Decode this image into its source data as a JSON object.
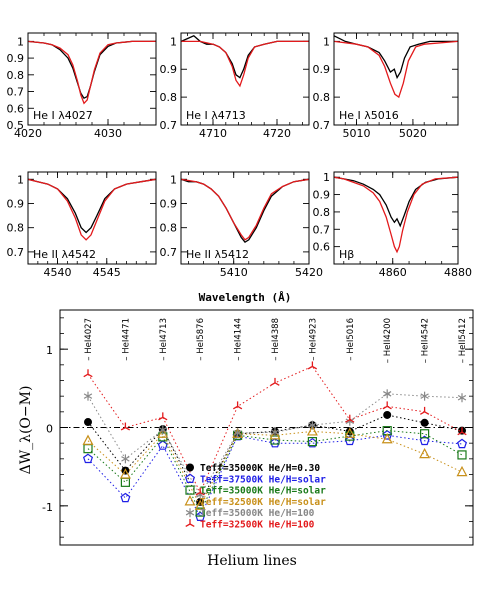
{
  "chart_data": [
    {
      "type": "line",
      "panel": "He I λ4027",
      "label": "He I λ4027",
      "xlim": [
        4020,
        4036
      ],
      "ylim": [
        0.5,
        1.05
      ],
      "xticks": [
        4020,
        4030
      ],
      "yticks": [
        0.5,
        0.6,
        0.7,
        0.8,
        0.9,
        1
      ],
      "series": [
        {
          "color": "#000000",
          "x": [
            4020,
            4022,
            4023,
            4024,
            4025,
            4025.6,
            4026.2,
            4026.6,
            4027,
            4027.4,
            4027.8,
            4028.3,
            4029,
            4030,
            4031,
            4033,
            4036
          ],
          "y": [
            1.0,
            0.99,
            0.98,
            0.95,
            0.9,
            0.84,
            0.75,
            0.69,
            0.66,
            0.67,
            0.73,
            0.82,
            0.92,
            0.97,
            0.99,
            1.0,
            1.0
          ]
        },
        {
          "color": "#e31a1c",
          "x": [
            4020,
            4022,
            4023,
            4024,
            4025,
            4025.6,
            4026.2,
            4026.6,
            4027,
            4027.4,
            4027.8,
            4028.3,
            4029,
            4030,
            4031,
            4033,
            4036
          ],
          "y": [
            1.0,
            0.99,
            0.98,
            0.96,
            0.92,
            0.86,
            0.76,
            0.68,
            0.63,
            0.65,
            0.73,
            0.83,
            0.93,
            0.98,
            0.99,
            1.0,
            1.0
          ]
        }
      ]
    },
    {
      "type": "line",
      "panel": "He I λ4713",
      "label": "He I λ4713",
      "xlim": [
        4705,
        4725
      ],
      "ylim": [
        0.7,
        1.03
      ],
      "xticks": [
        4710,
        4720
      ],
      "yticks": [
        0.7,
        0.8,
        0.9,
        1
      ],
      "series": [
        {
          "color": "#000000",
          "x": [
            4705,
            4706,
            4707,
            4708,
            4709,
            4710,
            4711,
            4712,
            4713,
            4713.6,
            4714.2,
            4714.8,
            4715.5,
            4716.5,
            4718,
            4720,
            4725
          ],
          "y": [
            1.0,
            1.01,
            1.02,
            1.0,
            0.99,
            0.99,
            0.98,
            0.96,
            0.92,
            0.88,
            0.87,
            0.9,
            0.95,
            0.98,
            0.99,
            1.0,
            1.0
          ]
        },
        {
          "color": "#e31a1c",
          "x": [
            4705,
            4708,
            4710,
            4711,
            4712,
            4713,
            4713.6,
            4714.2,
            4714.8,
            4715.5,
            4716.5,
            4718,
            4720,
            4725
          ],
          "y": [
            1.0,
            1.0,
            0.99,
            0.98,
            0.96,
            0.91,
            0.86,
            0.84,
            0.88,
            0.94,
            0.98,
            0.99,
            1.0,
            1.0
          ]
        }
      ]
    },
    {
      "type": "line",
      "panel": "He I λ5016",
      "label": "He I λ5016",
      "xlim": [
        5006,
        5028
      ],
      "ylim": [
        0.7,
        1.03
      ],
      "xticks": [
        5010,
        5020
      ],
      "yticks": [
        0.7,
        0.8,
        0.9,
        1
      ],
      "series": [
        {
          "color": "#000000",
          "x": [
            5006,
            5007,
            5008,
            5010,
            5012,
            5014,
            5015,
            5016,
            5016.7,
            5017.2,
            5017.8,
            5018.5,
            5019.5,
            5021,
            5023,
            5028
          ],
          "y": [
            1.02,
            1.01,
            1.0,
            0.99,
            0.98,
            0.96,
            0.93,
            0.89,
            0.9,
            0.87,
            0.89,
            0.94,
            0.98,
            0.99,
            1.0,
            1.0
          ]
        },
        {
          "color": "#e31a1c",
          "x": [
            5006,
            5010,
            5012,
            5014,
            5015,
            5016,
            5016.8,
            5017.5,
            5018.3,
            5019.2,
            5020.5,
            5022,
            5028
          ],
          "y": [
            1.0,
            0.99,
            0.98,
            0.95,
            0.91,
            0.85,
            0.81,
            0.8,
            0.85,
            0.93,
            0.98,
            0.99,
            1.0
          ]
        }
      ]
    },
    {
      "type": "line",
      "panel": "He II λ4542",
      "label": "He II λ4542",
      "xlim": [
        4537,
        4550
      ],
      "ylim": [
        0.65,
        1.03
      ],
      "xticks": [
        4540,
        4545
      ],
      "yticks": [
        0.7,
        0.8,
        0.9,
        1
      ],
      "series": [
        {
          "color": "#000000",
          "x": [
            4537,
            4538,
            4539,
            4540,
            4541,
            4541.8,
            4542.4,
            4542.9,
            4543.4,
            4544,
            4544.8,
            4545.8,
            4547,
            4548.5,
            4550
          ],
          "y": [
            1.0,
            0.99,
            0.98,
            0.96,
            0.92,
            0.86,
            0.8,
            0.78,
            0.8,
            0.85,
            0.92,
            0.96,
            0.98,
            0.99,
            1.0
          ]
        },
        {
          "color": "#e31a1c",
          "x": [
            4537,
            4538,
            4539,
            4540,
            4541,
            4541.8,
            4542.4,
            4542.9,
            4543.4,
            4544,
            4544.8,
            4545.8,
            4547,
            4548.5,
            4550
          ],
          "y": [
            1.0,
            0.99,
            0.98,
            0.96,
            0.91,
            0.84,
            0.77,
            0.75,
            0.77,
            0.83,
            0.91,
            0.96,
            0.98,
            0.99,
            1.0
          ]
        }
      ]
    },
    {
      "type": "line",
      "panel": "He II λ5412",
      "label": "He II λ5412",
      "xlim": [
        5403,
        5420
      ],
      "ylim": [
        0.65,
        1.03
      ],
      "xticks": [
        5410,
        5420
      ],
      "yticks": [
        0.7,
        0.8,
        0.9,
        1
      ],
      "series": [
        {
          "color": "#000000",
          "x": [
            5403,
            5404,
            5405,
            5406,
            5407,
            5408,
            5409,
            5410,
            5411,
            5411.5,
            5412,
            5413,
            5414,
            5415,
            5416.5,
            5418,
            5420
          ],
          "y": [
            1.0,
            0.99,
            0.99,
            0.98,
            0.96,
            0.93,
            0.88,
            0.82,
            0.76,
            0.74,
            0.75,
            0.8,
            0.87,
            0.93,
            0.97,
            0.99,
            1.0
          ]
        },
        {
          "color": "#e31a1c",
          "x": [
            5403,
            5405,
            5406,
            5407,
            5408,
            5409,
            5410,
            5411,
            5411.5,
            5412,
            5413,
            5414,
            5415,
            5416.5,
            5418,
            5420
          ],
          "y": [
            1.0,
            0.99,
            0.98,
            0.96,
            0.93,
            0.88,
            0.82,
            0.77,
            0.75,
            0.76,
            0.81,
            0.88,
            0.94,
            0.97,
            0.99,
            1.0
          ]
        }
      ]
    },
    {
      "type": "line",
      "panel": "Hβ",
      "label": "Hβ",
      "xlim": [
        4842,
        4880
      ],
      "ylim": [
        0.5,
        1.03
      ],
      "xticks": [
        4860,
        4880
      ],
      "yticks": [
        0.6,
        0.7,
        0.8,
        0.9,
        1
      ],
      "series": [
        {
          "color": "#000000",
          "x": [
            4842,
            4845,
            4848,
            4851,
            4854,
            4856,
            4858,
            4859.5,
            4860.5,
            4861.3,
            4862.3,
            4863.5,
            4865,
            4867,
            4870,
            4874,
            4880
          ],
          "y": [
            1.0,
            0.99,
            0.98,
            0.96,
            0.93,
            0.9,
            0.84,
            0.77,
            0.74,
            0.76,
            0.72,
            0.78,
            0.86,
            0.93,
            0.97,
            0.99,
            1.0
          ]
        },
        {
          "color": "#e31a1c",
          "x": [
            4842,
            4845,
            4848,
            4851,
            4854,
            4856,
            4858,
            4859.5,
            4860.5,
            4861.3,
            4862,
            4863,
            4864.5,
            4866.5,
            4869,
            4873,
            4880
          ],
          "y": [
            1.0,
            0.99,
            0.97,
            0.95,
            0.91,
            0.86,
            0.77,
            0.67,
            0.6,
            0.57,
            0.6,
            0.69,
            0.8,
            0.9,
            0.96,
            0.99,
            1.0
          ]
        }
      ]
    },
    {
      "type": "scatter",
      "panel": "bottom",
      "xlabel": "Helium lines",
      "ylabel": "ΔW_λ(O−M)",
      "ylim": [
        -1.5,
        1.5
      ],
      "yticks": [
        -1,
        0,
        1
      ],
      "categories": [
        "HeI4027",
        "HeI4471",
        "HeI4713",
        "HeI5876",
        "HeI4144",
        "HeI4388",
        "HeI4923",
        "HeI5016",
        "HeII4200",
        "HeII4542",
        "HeII5412"
      ],
      "series": [
        {
          "name": "Teff=35000K He/H=0.30",
          "color": "#000000",
          "marker": "filled-circle",
          "values": [
            0.07,
            -0.55,
            -0.02,
            -0.95,
            -0.08,
            -0.05,
            0.03,
            -0.05,
            0.16,
            0.06,
            -0.04
          ]
        },
        {
          "name": "Teff=37500K He/H=solar",
          "color": "#1f1fe6",
          "marker": "pentagon",
          "values": [
            -0.4,
            -0.9,
            -0.23,
            -1.14,
            -0.11,
            -0.2,
            -0.2,
            -0.17,
            -0.1,
            -0.17,
            -0.21
          ]
        },
        {
          "name": "Teff=35000K He/H=solar",
          "color": "#1a7a1a",
          "marker": "square",
          "values": [
            -0.27,
            -0.7,
            -0.12,
            -1.08,
            -0.1,
            -0.16,
            -0.18,
            -0.11,
            -0.04,
            -0.08,
            -0.35
          ]
        },
        {
          "name": "Teff=32500K He/H=solar",
          "color": "#c8901a",
          "marker": "triangle",
          "values": [
            -0.17,
            -0.6,
            -0.08,
            -1.0,
            -0.08,
            -0.1,
            -0.05,
            -0.08,
            -0.15,
            -0.34,
            -0.57
          ]
        },
        {
          "name": "Teff=35000K He/H=100",
          "color": "#888888",
          "marker": "star",
          "values": [
            0.4,
            -0.4,
            -0.03,
            -0.86,
            -0.07,
            -0.06,
            0.03,
            0.08,
            0.43,
            0.4,
            0.38
          ]
        },
        {
          "name": "Teff=32500K He/H=100",
          "color": "#e31a1c",
          "marker": "tripod",
          "values": [
            0.68,
            0.0,
            0.13,
            -0.83,
            0.27,
            0.57,
            0.78,
            0.1,
            0.27,
            0.2,
            -0.06
          ]
        }
      ]
    }
  ],
  "shared": {
    "top_xlabel": "Wavelength (Å)"
  }
}
